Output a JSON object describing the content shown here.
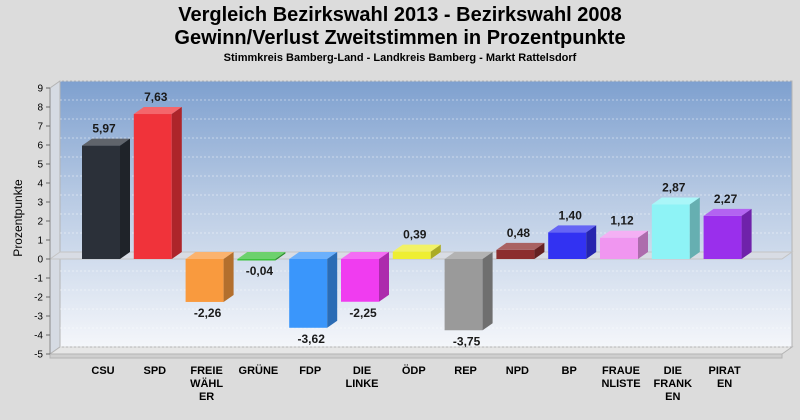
{
  "chart_data": {
    "type": "bar",
    "title_line1": "Vergleich Bezirkswahl 2013 - Bezirkswahl 2008",
    "title_line2": "Gewinn/Verlust Zweitstimmen in Prozentpunkte",
    "subtitle": "Stimmkreis Bamberg-Land - Landkreis Bamberg - Markt Rattelsdorf",
    "ylabel": "Prozentpunkte",
    "xlabel": "",
    "ylim": [
      -5,
      9
    ],
    "yticks": [
      9,
      8,
      7,
      6,
      5,
      4,
      3,
      2,
      1,
      0,
      -1,
      -2,
      -3,
      -4,
      -5
    ],
    "grid": true,
    "categories": [
      [
        "CSU"
      ],
      [
        "SPD"
      ],
      [
        "FREIE",
        "WÄHL",
        "ER"
      ],
      [
        "GRÜNE"
      ],
      [
        "FDP"
      ],
      [
        "DIE",
        "LINKE"
      ],
      [
        "ÖDP"
      ],
      [
        "REP"
      ],
      [
        "NPD"
      ],
      [
        "BP"
      ],
      [
        "FRAUE",
        "NLISTE"
      ],
      [
        "DIE",
        "FRANK",
        "EN"
      ],
      [
        "PIRAT",
        "EN"
      ]
    ],
    "values": [
      5.97,
      7.63,
      -2.26,
      -0.04,
      -3.62,
      -2.25,
      0.39,
      -3.75,
      0.48,
      1.4,
      1.12,
      2.87,
      2.27
    ],
    "value_labels": [
      "5,97",
      "7,63",
      "-2,26",
      "-0,04",
      "-3,62",
      "-2,25",
      "0,39",
      "-3,75",
      "0,48",
      "1,40",
      "1,12",
      "2,87",
      "2,27"
    ],
    "colors": [
      "#2b3039",
      "#f0333a",
      "#f99a3e",
      "#3cc23c",
      "#3a96fb",
      "#f03cf0",
      "#eeee33",
      "#9a9a9a",
      "#8c2e2e",
      "#3232f2",
      "#f096f0",
      "#8ef3f6",
      "#9a2fec"
    ]
  }
}
